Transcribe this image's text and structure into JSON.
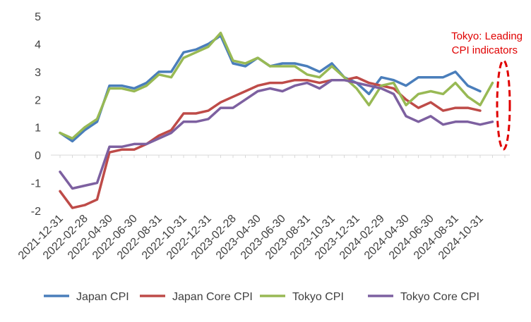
{
  "chart_data": {
    "type": "line",
    "title": "",
    "xlabel": "",
    "ylabel": "",
    "ylim": [
      -2,
      5
    ],
    "yticks": [
      -2,
      -1,
      0,
      1,
      2,
      3,
      4,
      5
    ],
    "x_count": 37,
    "x_tick_labels": [
      {
        "index": 0,
        "label": "2021-12-31"
      },
      {
        "index": 2,
        "label": "2022-02-28"
      },
      {
        "index": 4,
        "label": "2022-04-30"
      },
      {
        "index": 6,
        "label": "2022-06-30"
      },
      {
        "index": 8,
        "label": "2022-08-31"
      },
      {
        "index": 10,
        "label": "2022-10-31"
      },
      {
        "index": 12,
        "label": "2022-12-31"
      },
      {
        "index": 14,
        "label": "2023-02-28"
      },
      {
        "index": 16,
        "label": "2023-04-30"
      },
      {
        "index": 18,
        "label": "2023-06-30"
      },
      {
        "index": 20,
        "label": "2023-08-31"
      },
      {
        "index": 22,
        "label": "2023-10-31"
      },
      {
        "index": 24,
        "label": "2023-12-31"
      },
      {
        "index": 26,
        "label": "2024-02-29"
      },
      {
        "index": 28,
        "label": "2024-04-30"
      },
      {
        "index": 30,
        "label": "2024-06-30"
      },
      {
        "index": 32,
        "label": "2024-08-31"
      },
      {
        "index": 34,
        "label": "2024-10-31"
      }
    ],
    "series": [
      {
        "name": "Japan CPI",
        "color": "#4a7ebb",
        "values": [
          0.8,
          0.5,
          0.9,
          1.2,
          2.5,
          2.5,
          2.4,
          2.6,
          3.0,
          3.0,
          3.7,
          3.8,
          4.0,
          4.3,
          3.3,
          3.2,
          3.5,
          3.2,
          3.3,
          3.3,
          3.2,
          3.0,
          3.3,
          2.8,
          2.6,
          2.2,
          2.8,
          2.7,
          2.5,
          2.8,
          2.8,
          2.8,
          3.0,
          2.5,
          2.3,
          null,
          null
        ]
      },
      {
        "name": "Japan Core CPI",
        "color": "#be4b48",
        "values": [
          -1.3,
          -1.9,
          -1.8,
          -1.6,
          0.1,
          0.2,
          0.2,
          0.4,
          0.7,
          0.9,
          1.5,
          1.5,
          1.6,
          1.9,
          2.1,
          2.3,
          2.5,
          2.6,
          2.6,
          2.7,
          2.7,
          2.6,
          2.7,
          2.7,
          2.8,
          2.6,
          2.5,
          2.4,
          2.0,
          1.7,
          1.9,
          1.6,
          1.7,
          1.7,
          1.6,
          null,
          null
        ]
      },
      {
        "name": "Tokyo CPI",
        "color": "#98b954",
        "values": [
          0.8,
          0.6,
          1.0,
          1.3,
          2.4,
          2.4,
          2.3,
          2.5,
          2.9,
          2.8,
          3.5,
          3.7,
          3.9,
          4.4,
          3.4,
          3.3,
          3.5,
          3.2,
          3.2,
          3.2,
          2.9,
          2.8,
          3.2,
          2.8,
          2.4,
          1.8,
          2.5,
          2.6,
          1.8,
          2.2,
          2.3,
          2.2,
          2.6,
          2.1,
          1.8,
          2.6,
          null
        ]
      },
      {
        "name": "Tokyo Core CPI",
        "color": "#7d60a0",
        "values": [
          -0.6,
          -1.2,
          -1.1,
          -1.0,
          0.3,
          0.3,
          0.4,
          0.4,
          0.6,
          0.8,
          1.2,
          1.2,
          1.3,
          1.7,
          1.7,
          2.0,
          2.3,
          2.4,
          2.3,
          2.5,
          2.6,
          2.4,
          2.7,
          2.7,
          2.6,
          2.5,
          2.4,
          2.2,
          1.4,
          1.2,
          1.4,
          1.1,
          1.2,
          1.2,
          1.1,
          1.2,
          null
        ]
      }
    ],
    "annotation": {
      "lines": [
        "Tokyo: Leading",
        "CPI indicators"
      ],
      "color": "#e00000",
      "style": "dashed-ellipse"
    },
    "legend_position": "bottom",
    "grid": false
  }
}
